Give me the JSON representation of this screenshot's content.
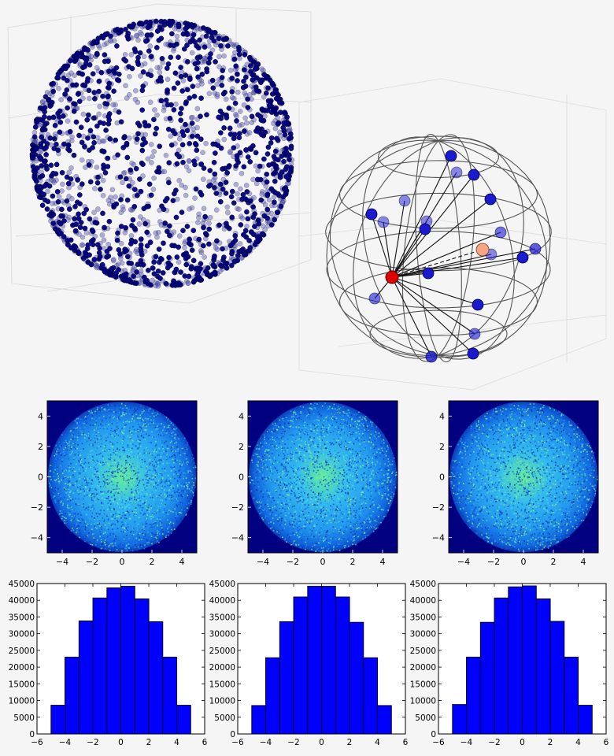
{
  "chart_data": [
    {
      "type": "scatter",
      "name": "3d-sphere-surface-points",
      "description_of_series": "points uniformly distributed on a sphere surface",
      "color": "#000080",
      "point_count_approx": 2000
    },
    {
      "type": "scatter",
      "name": "3d-wireframe-sphere-with-neighbors",
      "center_point_color": "#e00000",
      "highlight_point_color": "#f4a582",
      "neighbor_point_color": "#1a1ad0",
      "wireframe_color": "#555555"
    },
    {
      "type": "heatmap",
      "name": "density-1",
      "xticks": [
        -4,
        -2,
        0,
        2,
        4
      ],
      "yticks": [
        -4,
        -2,
        0,
        2,
        4
      ],
      "xlim": [
        -5,
        5
      ],
      "ylim": [
        -5,
        5
      ]
    },
    {
      "type": "heatmap",
      "name": "density-2",
      "xticks": [
        -4,
        -2,
        0,
        2,
        4
      ],
      "yticks": [
        -4,
        -2,
        0,
        2,
        4
      ],
      "xlim": [
        -5,
        5
      ],
      "ylim": [
        -5,
        5
      ]
    },
    {
      "type": "heatmap",
      "name": "density-3",
      "xticks": [
        -4,
        -2,
        0,
        2,
        4
      ],
      "yticks": [
        -4,
        -2,
        0,
        2,
        4
      ],
      "xlim": [
        -5,
        5
      ],
      "ylim": [
        -5,
        5
      ]
    },
    {
      "type": "bar",
      "name": "histogram-1",
      "bin_edges": [
        -5,
        -4,
        -3,
        -2,
        -1,
        0,
        1,
        2,
        3,
        4,
        5
      ],
      "values": [
        8600,
        23000,
        33800,
        40700,
        43700,
        44200,
        40400,
        33600,
        23000,
        8600
      ],
      "xticks": [
        -6,
        -4,
        -2,
        0,
        2,
        4,
        6
      ],
      "yticks": [
        0,
        5000,
        10000,
        15000,
        20000,
        25000,
        30000,
        35000,
        40000,
        45000
      ],
      "xlim": [
        -6,
        6
      ],
      "ylim": [
        0,
        45000
      ],
      "color": "#0000ff"
    },
    {
      "type": "bar",
      "name": "histogram-2",
      "bin_edges": [
        -5,
        -4,
        -3,
        -2,
        -1,
        0,
        1,
        2,
        3,
        4,
        5
      ],
      "values": [
        8500,
        22800,
        33600,
        41000,
        44200,
        44200,
        41000,
        33400,
        22800,
        8500
      ],
      "xticks": [
        -6,
        -4,
        -2,
        0,
        2,
        4,
        6
      ],
      "yticks": [
        0,
        5000,
        10000,
        15000,
        20000,
        25000,
        30000,
        35000,
        40000,
        45000
      ],
      "xlim": [
        -6,
        6
      ],
      "ylim": [
        0,
        45000
      ],
      "color": "#0000ff"
    },
    {
      "type": "bar",
      "name": "histogram-3",
      "bin_edges": [
        -5,
        -4,
        -3,
        -2,
        -1,
        0,
        1,
        2,
        3,
        4,
        5
      ],
      "values": [
        8800,
        23000,
        33400,
        40700,
        44000,
        44300,
        40400,
        33700,
        23000,
        8600
      ],
      "xticks": [
        -6,
        -4,
        -2,
        0,
        2,
        4,
        6
      ],
      "yticks": [
        0,
        5000,
        10000,
        15000,
        20000,
        25000,
        30000,
        35000,
        40000,
        45000
      ],
      "xlim": [
        -6,
        6
      ],
      "ylim": [
        0,
        45000
      ],
      "color": "#0000ff"
    }
  ]
}
